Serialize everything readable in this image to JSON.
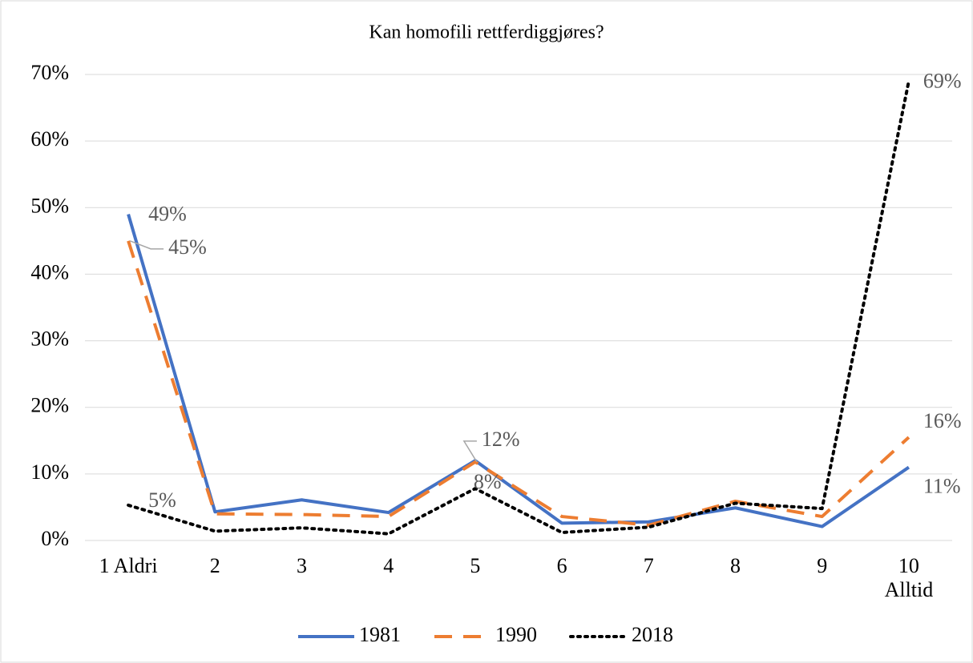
{
  "chart_data": {
    "type": "line",
    "title": "Kan homofili rettferdiggjøres?",
    "categories": [
      "1 Aldri",
      "2",
      "3",
      "4",
      "5",
      "6",
      "7",
      "8",
      "9",
      "10\nAlltid"
    ],
    "series": [
      {
        "name": "1981",
        "color": "#4472c4",
        "dash": "solid",
        "values": [
          49,
          4.3,
          6.1,
          4.2,
          12,
          2.6,
          2.8,
          4.9,
          2.1,
          11
        ],
        "value_labels": [
          "49%",
          null,
          null,
          null,
          null,
          null,
          null,
          null,
          null,
          "11%"
        ]
      },
      {
        "name": "1990",
        "color": "#ed7d31",
        "dash": "dashed",
        "values": [
          45,
          4.0,
          3.9,
          3.6,
          11.8,
          3.6,
          2.3,
          5.9,
          3.6,
          15.5
        ],
        "value_labels": [
          "45%",
          null,
          null,
          null,
          "12%",
          null,
          null,
          null,
          null,
          "16%"
        ]
      },
      {
        "name": "2018",
        "color": "#000000",
        "dash": "dotted",
        "values": [
          5.3,
          1.4,
          1.9,
          1.0,
          7.8,
          1.2,
          2.0,
          5.6,
          4.8,
          69
        ],
        "value_labels": [
          "5%",
          null,
          null,
          null,
          "8%",
          null,
          null,
          null,
          null,
          "69%"
        ]
      }
    ],
    "ylim": [
      0,
      70
    ],
    "yticks": [
      {
        "value": 0,
        "label": "0%"
      },
      {
        "value": 10,
        "label": "10%"
      },
      {
        "value": 20,
        "label": "20%"
      },
      {
        "value": 30,
        "label": "30%"
      },
      {
        "value": 40,
        "label": "40%"
      },
      {
        "value": 50,
        "label": "50%"
      },
      {
        "value": 60,
        "label": "60%"
      },
      {
        "value": 70,
        "label": "70%"
      }
    ],
    "grid": true,
    "legend": "bottom"
  }
}
